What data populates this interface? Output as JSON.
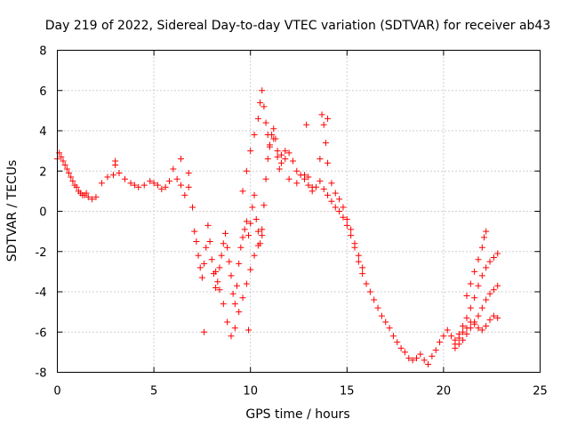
{
  "chart_data": {
    "type": "scatter",
    "title": "Day 219 of 2022, Sidereal Day-to-day VTEC variation (SDTVAR) for receiver ab43",
    "xlabel": "GPS time / hours",
    "ylabel": "SDTVAR / TECUs",
    "xlim": [
      0,
      25
    ],
    "ylim": [
      -8,
      8
    ],
    "xticks": [
      0,
      5,
      10,
      15,
      20,
      25
    ],
    "yticks": [
      -8,
      -6,
      -4,
      -2,
      0,
      2,
      4,
      6,
      8
    ],
    "x_tick_labels": [
      "0",
      "5",
      "10",
      "15",
      "20",
      "25"
    ],
    "y_tick_labels": [
      "-8",
      "-6",
      "-4",
      "-2",
      "0",
      "2",
      "4",
      "6",
      "8"
    ],
    "grid": true,
    "marker": "+",
    "color": "#ff0000",
    "series": [
      {
        "name": "main-trace",
        "x": [
          0.0,
          0.1,
          0.2,
          0.3,
          0.4,
          0.5,
          0.6,
          0.7,
          0.8,
          0.9,
          1.0,
          1.1,
          1.2,
          1.3,
          1.4,
          1.5,
          1.6,
          1.8,
          2.0,
          2.3,
          2.6,
          2.9,
          3.0,
          3.2,
          3.5,
          3.8,
          4.0,
          4.2,
          4.5,
          4.8,
          5.0,
          5.2,
          5.4,
          5.6,
          5.8,
          6.0,
          6.2,
          6.4,
          6.6,
          6.8,
          7.0,
          7.1,
          7.2,
          7.3,
          7.4,
          7.5,
          7.6,
          7.7,
          7.8,
          7.9,
          8.0,
          8.1,
          8.2,
          8.3,
          8.4,
          8.5,
          8.6,
          8.7,
          8.8,
          8.9,
          9.0,
          9.1,
          9.2,
          9.3,
          9.4,
          9.5,
          9.6,
          9.7,
          9.8,
          9.9,
          10.0,
          10.1,
          10.2,
          10.3,
          10.4,
          10.5,
          10.6,
          10.7,
          10.8,
          10.9,
          11.0,
          11.1,
          11.2,
          11.3,
          11.4,
          11.5,
          11.6,
          11.8,
          12.0,
          12.2,
          12.4,
          12.6,
          12.8,
          13.0,
          13.2,
          13.4,
          13.6,
          13.8,
          14.0,
          14.2,
          14.4,
          14.6,
          14.8,
          15.0,
          15.2,
          15.4,
          15.6,
          15.8,
          16.0,
          16.2,
          16.4,
          16.6,
          16.8,
          17.0,
          17.2,
          17.4,
          17.6,
          17.8,
          18.0,
          18.2,
          18.4,
          18.6,
          18.8,
          19.0,
          19.2,
          19.4,
          19.6,
          19.8,
          20.0,
          20.2,
          20.4,
          20.6,
          20.8,
          21.0,
          21.2,
          21.4,
          21.6,
          21.8,
          22.0,
          22.2,
          22.4,
          22.6,
          22.8
        ],
        "y": [
          2.6,
          2.9,
          2.7,
          2.5,
          2.3,
          2.1,
          1.9,
          1.7,
          1.5,
          1.3,
          1.2,
          1.0,
          0.9,
          0.8,
          0.8,
          0.9,
          0.7,
          0.6,
          0.7,
          1.4,
          1.7,
          1.8,
          2.3,
          1.9,
          1.6,
          1.4,
          1.3,
          1.2,
          1.3,
          1.5,
          1.4,
          1.3,
          1.1,
          1.2,
          1.5,
          2.1,
          1.6,
          1.3,
          0.8,
          1.2,
          0.2,
          -1.0,
          -1.5,
          -2.2,
          -2.8,
          -3.3,
          -2.6,
          -1.8,
          -0.7,
          -1.5,
          -2.4,
          -3.1,
          -3.8,
          -3.5,
          -2.8,
          -2.2,
          -1.6,
          -1.1,
          -1.8,
          -2.5,
          -3.2,
          -4.1,
          -4.6,
          -3.7,
          -2.6,
          -1.8,
          -1.3,
          -0.9,
          -0.5,
          -1.2,
          -0.6,
          0.2,
          0.8,
          -0.4,
          -1.0,
          -1.6,
          -0.9,
          0.3,
          1.6,
          2.6,
          3.3,
          3.8,
          4.1,
          3.6,
          2.7,
          2.1,
          2.4,
          3.0,
          2.9,
          2.5,
          2.0,
          1.8,
          1.6,
          1.3,
          1.0,
          1.2,
          1.5,
          1.1,
          0.8,
          0.5,
          0.2,
          0.0,
          -0.3,
          -0.7,
          -1.2,
          -1.8,
          -2.5,
          -3.1,
          -3.6,
          -4.0,
          -4.4,
          -4.8,
          -5.2,
          -5.5,
          -5.8,
          -6.2,
          -6.5,
          -6.8,
          -7.0,
          -7.3,
          -7.4,
          -7.3,
          -7.1,
          -7.4,
          -7.6,
          -7.2,
          -6.9,
          -6.5,
          -6.2,
          -5.9,
          -6.2,
          -6.6,
          -6.3,
          -6.0,
          -5.8,
          -5.5,
          -5.6,
          -5.8,
          -5.9,
          -5.7,
          -5.4,
          -5.2,
          -5.3
        ]
      },
      {
        "name": "upper-branch",
        "x": [
          9.6,
          9.8,
          10.0,
          10.2,
          10.4,
          10.5,
          10.6,
          10.7,
          10.8,
          10.9,
          11.0,
          11.2,
          11.4,
          11.6,
          11.8,
          12.0,
          12.4,
          12.8,
          13.2,
          13.6,
          13.7,
          13.8,
          13.9,
          14.0,
          14.2,
          14.4,
          14.6,
          14.8,
          15.0,
          15.2,
          15.4,
          15.6,
          15.8
        ],
        "y": [
          1.0,
          2.0,
          3.0,
          3.8,
          4.6,
          5.4,
          6.0,
          5.2,
          4.4,
          3.8,
          3.2,
          3.6,
          3.0,
          2.8,
          2.6,
          1.6,
          1.4,
          1.8,
          1.2,
          2.6,
          4.8,
          4.3,
          3.4,
          2.4,
          1.4,
          0.9,
          0.6,
          0.2,
          -0.4,
          -0.9,
          -1.6,
          -2.2,
          -2.8
        ]
      },
      {
        "name": "secondary-dip",
        "x": [
          8.2,
          8.4,
          8.6,
          8.8,
          9.0,
          9.2,
          9.4,
          9.6,
          9.8,
          10.0,
          10.2,
          10.4,
          10.6
        ],
        "y": [
          -3.0,
          -3.9,
          -4.6,
          -5.5,
          -6.2,
          -5.8,
          -5.0,
          -4.3,
          -3.6,
          -2.9,
          -2.2,
          -1.7,
          -1.2
        ]
      },
      {
        "name": "recovery-branch",
        "x": [
          20.6,
          20.8,
          21.0,
          21.2,
          21.4,
          21.6,
          21.8,
          22.0,
          22.2,
          22.4,
          22.6,
          22.8
        ],
        "y": [
          -6.4,
          -6.1,
          -5.7,
          -5.3,
          -4.8,
          -4.3,
          -3.7,
          -3.2,
          -2.8,
          -2.5,
          -2.3,
          -2.1
        ]
      },
      {
        "name": "recovery-peak",
        "x": [
          21.2,
          21.4,
          21.6,
          21.8,
          22.0,
          22.1,
          22.2
        ],
        "y": [
          -4.2,
          -3.6,
          -3.0,
          -2.4,
          -1.8,
          -1.3,
          -1.0
        ]
      },
      {
        "name": "lower-recovery",
        "x": [
          20.6,
          20.8,
          21.0,
          21.2,
          21.4,
          21.6,
          21.8,
          22.0,
          22.2,
          22.4,
          22.6,
          22.8
        ],
        "y": [
          -6.8,
          -6.6,
          -6.4,
          -6.1,
          -5.8,
          -5.5,
          -5.2,
          -4.8,
          -4.4,
          -4.1,
          -3.9,
          -3.7
        ]
      },
      {
        "name": "outliers",
        "x": [
          3.0,
          6.4,
          6.8,
          12.9,
          13.0,
          14.0,
          7.6,
          9.9
        ],
        "y": [
          2.5,
          2.6,
          1.9,
          4.3,
          1.7,
          4.6,
          -6.0,
          -5.9
        ]
      }
    ]
  }
}
